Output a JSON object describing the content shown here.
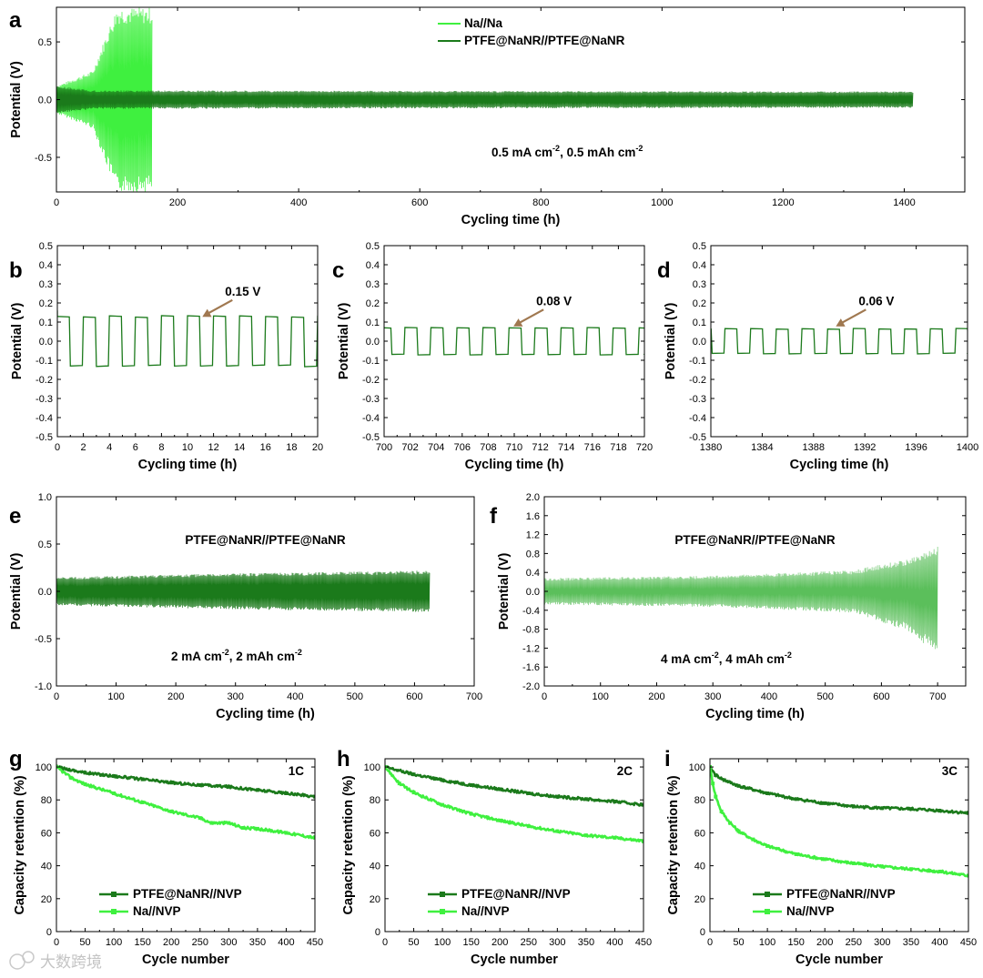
{
  "colors": {
    "dark": "#1b7a1b",
    "light": "#3ff03f",
    "mid": "#5bbf5b",
    "arrow": "#a07850"
  },
  "watermark": "大数跨境",
  "chart_data": [
    {
      "id": "a",
      "type": "line",
      "label": "a",
      "xlabel": "Cycling time (h)",
      "ylabel": "Potential (V)",
      "xlim": [
        0,
        1500
      ],
      "ylim": [
        -0.8,
        0.8
      ],
      "xticks": [
        0,
        200,
        400,
        600,
        800,
        1000,
        1200,
        1400
      ],
      "yticks": [
        -0.5,
        0.0,
        0.5
      ],
      "xtick_labels": [
        "0",
        "200",
        "400",
        "600",
        "800",
        "1000",
        "1200",
        "1400"
      ],
      "ytick_labels": [
        "-0.5",
        "0.0",
        "0.5"
      ],
      "series": [
        {
          "name": "Na//Na",
          "color": "light",
          "kind": "osc",
          "t_end": 158,
          "envelope": [
            [
              0,
              0.12
            ],
            [
              60,
              0.25
            ],
            [
              85,
              0.6
            ],
            [
              100,
              0.8
            ],
            [
              158,
              0.8
            ]
          ]
        },
        {
          "name": "PTFE@NaNR//PTFE@NaNR",
          "color": "dark",
          "kind": "osc",
          "t_end": 1415,
          "envelope": [
            [
              0,
              0.12
            ],
            [
              60,
              0.08
            ],
            [
              1415,
              0.07
            ]
          ]
        }
      ],
      "legend": {
        "entries": [
          "Na//Na",
          "PTFE@NaNR//PTFE@NaNR"
        ],
        "position": "top-center"
      },
      "annotation": {
        "text": "0.5 mA cm",
        "sup1": "-2",
        "mid": ", 0.5 mAh cm",
        "sup2": "-2"
      }
    },
    {
      "id": "b",
      "type": "line",
      "label": "b",
      "xlabel": "Cycling time (h)",
      "ylabel": "Potential (V)",
      "xlim": [
        0,
        20
      ],
      "ylim": [
        -0.5,
        0.5
      ],
      "xticks": [
        0,
        2,
        4,
        6,
        8,
        10,
        12,
        14,
        16,
        18,
        20
      ],
      "xtick_labels": [
        "0",
        "2",
        "4",
        "6",
        "8",
        "10",
        "12",
        "14",
        "16",
        "18",
        "20"
      ],
      "yticks": [
        -0.5,
        -0.4,
        -0.3,
        -0.2,
        -0.1,
        0.0,
        0.1,
        0.2,
        0.3,
        0.4,
        0.5
      ],
      "ytick_labels": [
        "-0.5",
        "-0.4",
        "-0.3",
        "-0.2",
        "-0.1",
        "0.0",
        "0.1",
        "0.2",
        "0.3",
        "0.4",
        "0.5"
      ],
      "series": [
        {
          "name": "PTFE@NaNR//PTFE@NaNR",
          "color": "dark",
          "kind": "square",
          "t0": 0,
          "t1": 20,
          "period": 2,
          "amp": 0.13,
          "start_high": 0.16
        }
      ],
      "callout": {
        "text": "0.15 V",
        "x": 11,
        "y": 0.12
      }
    },
    {
      "id": "c",
      "type": "line",
      "label": "c",
      "xlabel": "Cycling time (h)",
      "ylabel": "Potential (V)",
      "xlim": [
        700,
        720
      ],
      "ylim": [
        -0.5,
        0.5
      ],
      "xticks": [
        700,
        702,
        704,
        706,
        708,
        710,
        712,
        714,
        716,
        718,
        720
      ],
      "xtick_labels": [
        "700",
        "702",
        "704",
        "706",
        "708",
        "710",
        "712",
        "714",
        "716",
        "718",
        "720"
      ],
      "yticks": [
        -0.5,
        -0.4,
        -0.3,
        -0.2,
        -0.1,
        0.0,
        0.1,
        0.2,
        0.3,
        0.4,
        0.5
      ],
      "ytick_labels": [
        "-0.5",
        "-0.4",
        "-0.3",
        "-0.2",
        "-0.1",
        "0.0",
        "0.1",
        "0.2",
        "0.3",
        "0.4",
        "0.5"
      ],
      "series": [
        {
          "name": "PTFE@NaNR//PTFE@NaNR",
          "color": "dark",
          "kind": "square",
          "t0": 700,
          "t1": 720,
          "period": 2,
          "amp": 0.07,
          "phase": 0.6
        }
      ],
      "callout": {
        "text": "0.08 V",
        "x": 709.8,
        "y": 0.07
      }
    },
    {
      "id": "d",
      "type": "line",
      "label": "d",
      "xlabel": "Cycling time (h)",
      "ylabel": "Potential (V)",
      "xlim": [
        1380,
        1400
      ],
      "ylim": [
        -0.5,
        0.5
      ],
      "xticks": [
        1380,
        1384,
        1388,
        1392,
        1396,
        1400
      ],
      "xtick_labels": [
        "1380",
        "1384",
        "1388",
        "1392",
        "1396",
        "1400"
      ],
      "yticks": [
        -0.5,
        -0.4,
        -0.3,
        -0.2,
        -0.1,
        0.0,
        0.1,
        0.2,
        0.3,
        0.4,
        0.5
      ],
      "ytick_labels": [
        "-0.5",
        "-0.4",
        "-0.3",
        "-0.2",
        "-0.1",
        "0.0",
        "0.1",
        "0.2",
        "0.3",
        "0.4",
        "0.5"
      ],
      "series": [
        {
          "name": "PTFE@NaNR//PTFE@NaNR",
          "color": "dark",
          "kind": "square",
          "t0": 1380,
          "t1": 1400,
          "period": 2,
          "amp": 0.065,
          "phase": 0.1
        }
      ],
      "callout": {
        "text": "0.06 V",
        "x": 1389.6,
        "y": 0.07
      }
    },
    {
      "id": "e",
      "type": "line",
      "label": "e",
      "xlabel": "Cycling time (h)",
      "ylabel": "Potential (V)",
      "xlim": [
        0,
        700
      ],
      "ylim": [
        -1.0,
        1.0
      ],
      "xticks": [
        0,
        100,
        200,
        300,
        400,
        500,
        600,
        700
      ],
      "xtick_labels": [
        "0",
        "100",
        "200",
        "300",
        "400",
        "500",
        "600",
        "700"
      ],
      "yticks": [
        -1.0,
        -0.5,
        0.0,
        0.5,
        1.0
      ],
      "ytick_labels": [
        "-1.0",
        "-0.5",
        "0.0",
        "0.5",
        "1.0"
      ],
      "series": [
        {
          "name": "PTFE@NaNR//PTFE@NaNR",
          "color": "dark",
          "kind": "osc",
          "t_end": 625,
          "envelope": [
            [
              0,
              0.15
            ],
            [
              300,
              0.19
            ],
            [
              625,
              0.22
            ]
          ]
        }
      ],
      "title_text": "PTFE@NaNR//PTFE@NaNR",
      "annotation": {
        "text": "2 mA cm",
        "sup1": "-2",
        "mid": ", 2 mAh cm",
        "sup2": "-2"
      }
    },
    {
      "id": "f",
      "type": "line",
      "label": "f",
      "xlabel": "Cycling time (h)",
      "ylabel": "Potential (V)",
      "xlim": [
        0,
        750
      ],
      "ylim": [
        -2.0,
        2.0
      ],
      "xticks": [
        0,
        100,
        200,
        300,
        400,
        500,
        600,
        700
      ],
      "xtick_labels": [
        "0",
        "100",
        "200",
        "300",
        "400",
        "500",
        "600",
        "700"
      ],
      "yticks": [
        -2.0,
        -1.6,
        -1.2,
        -0.8,
        -0.4,
        0.0,
        0.4,
        0.8,
        1.2,
        1.6,
        2.0
      ],
      "ytick_labels": [
        "-2.0",
        "-1.6",
        "-1.2",
        "-0.8",
        "-0.4",
        "0.0",
        "0.4",
        "0.8",
        "1.2",
        "1.6",
        "2.0"
      ],
      "series": [
        {
          "name": "PTFE@NaNR//PTFE@NaNR",
          "color": "mid",
          "kind": "osc_asym",
          "t_end": 700,
          "upper": [
            [
              0,
              0.28
            ],
            [
              300,
              0.33
            ],
            [
              550,
              0.45
            ],
            [
              650,
              0.7
            ],
            [
              700,
              0.95
            ]
          ],
          "lower": [
            [
              0,
              -0.28
            ],
            [
              300,
              -0.33
            ],
            [
              550,
              -0.45
            ],
            [
              650,
              -0.85
            ],
            [
              700,
              -1.35
            ]
          ]
        }
      ],
      "title_text": "PTFE@NaNR//PTFE@NaNR",
      "annotation": {
        "text": "4 mA cm",
        "sup1": "-2",
        "mid": ", 4 mAh cm",
        "sup2": "-2"
      }
    },
    {
      "id": "g",
      "type": "line",
      "label": "g",
      "xlabel": "Cycle number",
      "ylabel": "Capacity retention (%)",
      "xlim": [
        0,
        450
      ],
      "ylim": [
        0,
        105
      ],
      "xticks": [
        0,
        50,
        100,
        150,
        200,
        250,
        300,
        350,
        400,
        450
      ],
      "xtick_labels": [
        "0",
        "50",
        "100",
        "150",
        "200",
        "250",
        "300",
        "350",
        "400",
        "450"
      ],
      "yticks": [
        0,
        20,
        40,
        60,
        80,
        100
      ],
      "ytick_labels": [
        "0",
        "20",
        "40",
        "60",
        "80",
        "100"
      ],
      "rate": "1C",
      "series": [
        {
          "name": "PTFE@NaNR//NVP",
          "color": "dark",
          "points": [
            [
              0,
              100
            ],
            [
              50,
              96.5
            ],
            [
              100,
              94.5
            ],
            [
              150,
              92.5
            ],
            [
              200,
              90.5
            ],
            [
              250,
              89
            ],
            [
              300,
              88
            ],
            [
              350,
              86
            ],
            [
              400,
              84
            ],
            [
              450,
              82
            ]
          ]
        },
        {
          "name": "Na//NVP",
          "color": "light",
          "points": [
            [
              0,
              100
            ],
            [
              25,
              93.5
            ],
            [
              50,
              89.5
            ],
            [
              100,
              84
            ],
            [
              150,
              78.5
            ],
            [
              200,
              73
            ],
            [
              250,
              69
            ],
            [
              270,
              66
            ],
            [
              300,
              66
            ],
            [
              325,
              63
            ],
            [
              350,
              62.5
            ],
            [
              400,
              60
            ],
            [
              450,
              57
            ]
          ]
        }
      ],
      "legend": {
        "entries": [
          "PTFE@NaNR//NVP",
          "Na//NVP"
        ],
        "position": "bottom-left"
      }
    },
    {
      "id": "h",
      "type": "line",
      "label": "h",
      "xlabel": "Cycle number",
      "ylabel": "Capacity retention (%)",
      "xlim": [
        0,
        450
      ],
      "ylim": [
        0,
        105
      ],
      "xticks": [
        0,
        50,
        100,
        150,
        200,
        250,
        300,
        350,
        400,
        450
      ],
      "xtick_labels": [
        "0",
        "50",
        "100",
        "150",
        "200",
        "250",
        "300",
        "350",
        "400",
        "450"
      ],
      "yticks": [
        0,
        20,
        40,
        60,
        80,
        100
      ],
      "ytick_labels": [
        "0",
        "20",
        "40",
        "60",
        "80",
        "100"
      ],
      "rate": "2C",
      "series": [
        {
          "name": "PTFE@NaNR//NVP",
          "color": "dark",
          "points": [
            [
              0,
              100
            ],
            [
              50,
              95.5
            ],
            [
              100,
              92
            ],
            [
              150,
              89
            ],
            [
              200,
              86.5
            ],
            [
              250,
              84
            ],
            [
              300,
              82
            ],
            [
              350,
              80.5
            ],
            [
              400,
              79
            ],
            [
              450,
              77
            ]
          ]
        },
        {
          "name": "Na//NVP",
          "color": "light",
          "points": [
            [
              0,
              100
            ],
            [
              25,
              90
            ],
            [
              50,
              84.5
            ],
            [
              100,
              77
            ],
            [
              150,
              71.5
            ],
            [
              200,
              67.5
            ],
            [
              250,
              64
            ],
            [
              300,
              61
            ],
            [
              350,
              58.5
            ],
            [
              400,
              57
            ],
            [
              450,
              55
            ]
          ]
        }
      ],
      "legend": {
        "entries": [
          "PTFE@NaNR//NVP",
          "Na//NVP"
        ],
        "position": "bottom-left"
      }
    },
    {
      "id": "i",
      "type": "line",
      "label": "i",
      "xlabel": "Cycle number",
      "ylabel": "Capacity retention (%)",
      "xlim": [
        0,
        450
      ],
      "ylim": [
        0,
        105
      ],
      "xticks": [
        0,
        50,
        100,
        150,
        200,
        250,
        300,
        350,
        400,
        450
      ],
      "xtick_labels": [
        "0",
        "50",
        "100",
        "150",
        "200",
        "250",
        "300",
        "350",
        "400",
        "450"
      ],
      "yticks": [
        0,
        20,
        40,
        60,
        80,
        100
      ],
      "ytick_labels": [
        "0",
        "20",
        "40",
        "60",
        "80",
        "100"
      ],
      "rate": "3C",
      "series": [
        {
          "name": "PTFE@NaNR//NVP",
          "color": "dark",
          "points": [
            [
              0,
              100
            ],
            [
              10,
              95
            ],
            [
              25,
              92
            ],
            [
              50,
              88.5
            ],
            [
              100,
              84
            ],
            [
              150,
              80.5
            ],
            [
              200,
              78
            ],
            [
              250,
              76
            ],
            [
              300,
              75
            ],
            [
              350,
              74.5
            ],
            [
              400,
              73.5
            ],
            [
              450,
              72
            ]
          ]
        },
        {
          "name": "Na//NVP",
          "color": "light",
          "points": [
            [
              0,
              100
            ],
            [
              5,
              90
            ],
            [
              10,
              82
            ],
            [
              20,
              73
            ],
            [
              35,
              66
            ],
            [
              50,
              61
            ],
            [
              75,
              56
            ],
            [
              100,
              52
            ],
            [
              150,
              47
            ],
            [
              200,
              44
            ],
            [
              250,
              41.5
            ],
            [
              300,
              39.5
            ],
            [
              350,
              38
            ],
            [
              400,
              36.5
            ],
            [
              450,
              34
            ]
          ]
        }
      ],
      "legend": {
        "entries": [
          "PTFE@NaNR//NVP",
          "Na//NVP"
        ],
        "position": "bottom-left"
      }
    }
  ]
}
